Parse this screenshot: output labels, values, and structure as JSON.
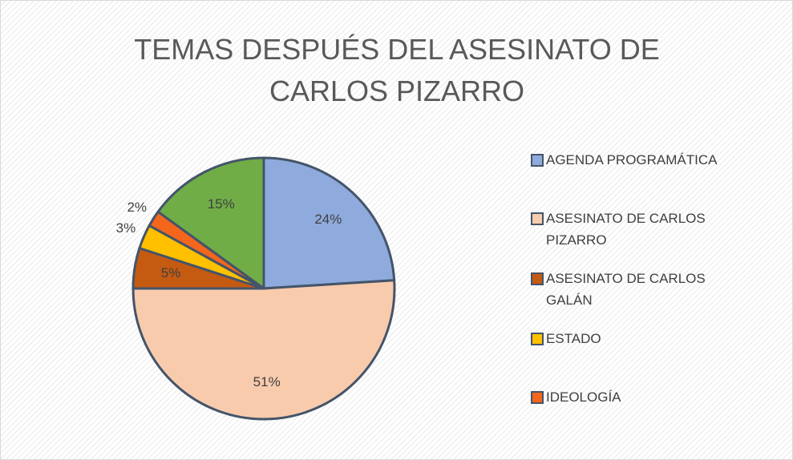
{
  "chart_data": {
    "type": "pie",
    "title": "TEMAS DESPUÉS DEL ASESINATO DE CARLOS PIZARRO",
    "categories": [
      "AGENDA PROGRAMÁTICA",
      "ASESINATO DE CARLOS PIZARRO",
      "ASESINATO DE CARLOS GALÁN",
      "ESTADO",
      "IDEOLOGÍA",
      null
    ],
    "values": [
      24,
      51,
      5,
      3,
      2,
      15
    ],
    "value_labels": [
      "24%",
      "51%",
      "5%",
      "3%",
      "2%",
      "15%"
    ],
    "colors": [
      "#8faadc",
      "#f8cbad",
      "#c55a11",
      "#ffc000",
      "#f4661b",
      "#70ad47"
    ],
    "legend": "right"
  }
}
